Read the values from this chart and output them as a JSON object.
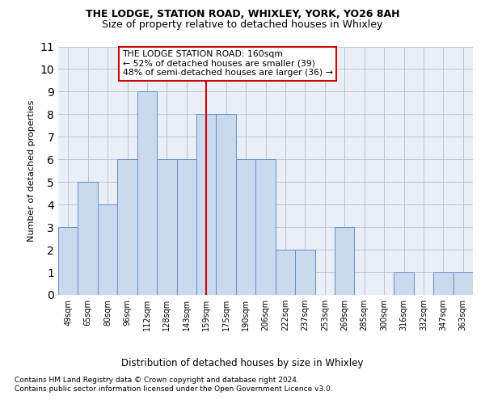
{
  "title1": "THE LODGE, STATION ROAD, WHIXLEY, YORK, YO26 8AH",
  "title2": "Size of property relative to detached houses in Whixley",
  "xlabel": "Distribution of detached houses by size in Whixley",
  "ylabel": "Number of detached properties",
  "categories": [
    "49sqm",
    "65sqm",
    "80sqm",
    "96sqm",
    "112sqm",
    "128sqm",
    "143sqm",
    "159sqm",
    "175sqm",
    "190sqm",
    "206sqm",
    "222sqm",
    "237sqm",
    "253sqm",
    "269sqm",
    "285sqm",
    "300sqm",
    "316sqm",
    "332sqm",
    "347sqm",
    "363sqm"
  ],
  "values": [
    3,
    5,
    4,
    6,
    9,
    6,
    6,
    8,
    8,
    6,
    6,
    2,
    2,
    0,
    3,
    0,
    0,
    1,
    0,
    1,
    1
  ],
  "bar_color": "#cad9ed",
  "bar_edge_color": "#6090c8",
  "reference_bar_index": 7,
  "annotation_title": "THE LODGE STATION ROAD: 160sqm",
  "annotation_line1": "← 52% of detached houses are smaller (39)",
  "annotation_line2": "48% of semi-detached houses are larger (36) →",
  "annotation_box_facecolor": "#ffffff",
  "annotation_box_edgecolor": "#cc0000",
  "reference_line_color": "#cc0000",
  "ylim": [
    0,
    11
  ],
  "yticks": [
    0,
    1,
    2,
    3,
    4,
    5,
    6,
    7,
    8,
    9,
    10,
    11
  ],
  "footer1": "Contains HM Land Registry data © Crown copyright and database right 2024.",
  "footer2": "Contains public sector information licensed under the Open Government Licence v3.0.",
  "bg_color": "#eaeff7",
  "grid_color": "#b8c5d8"
}
